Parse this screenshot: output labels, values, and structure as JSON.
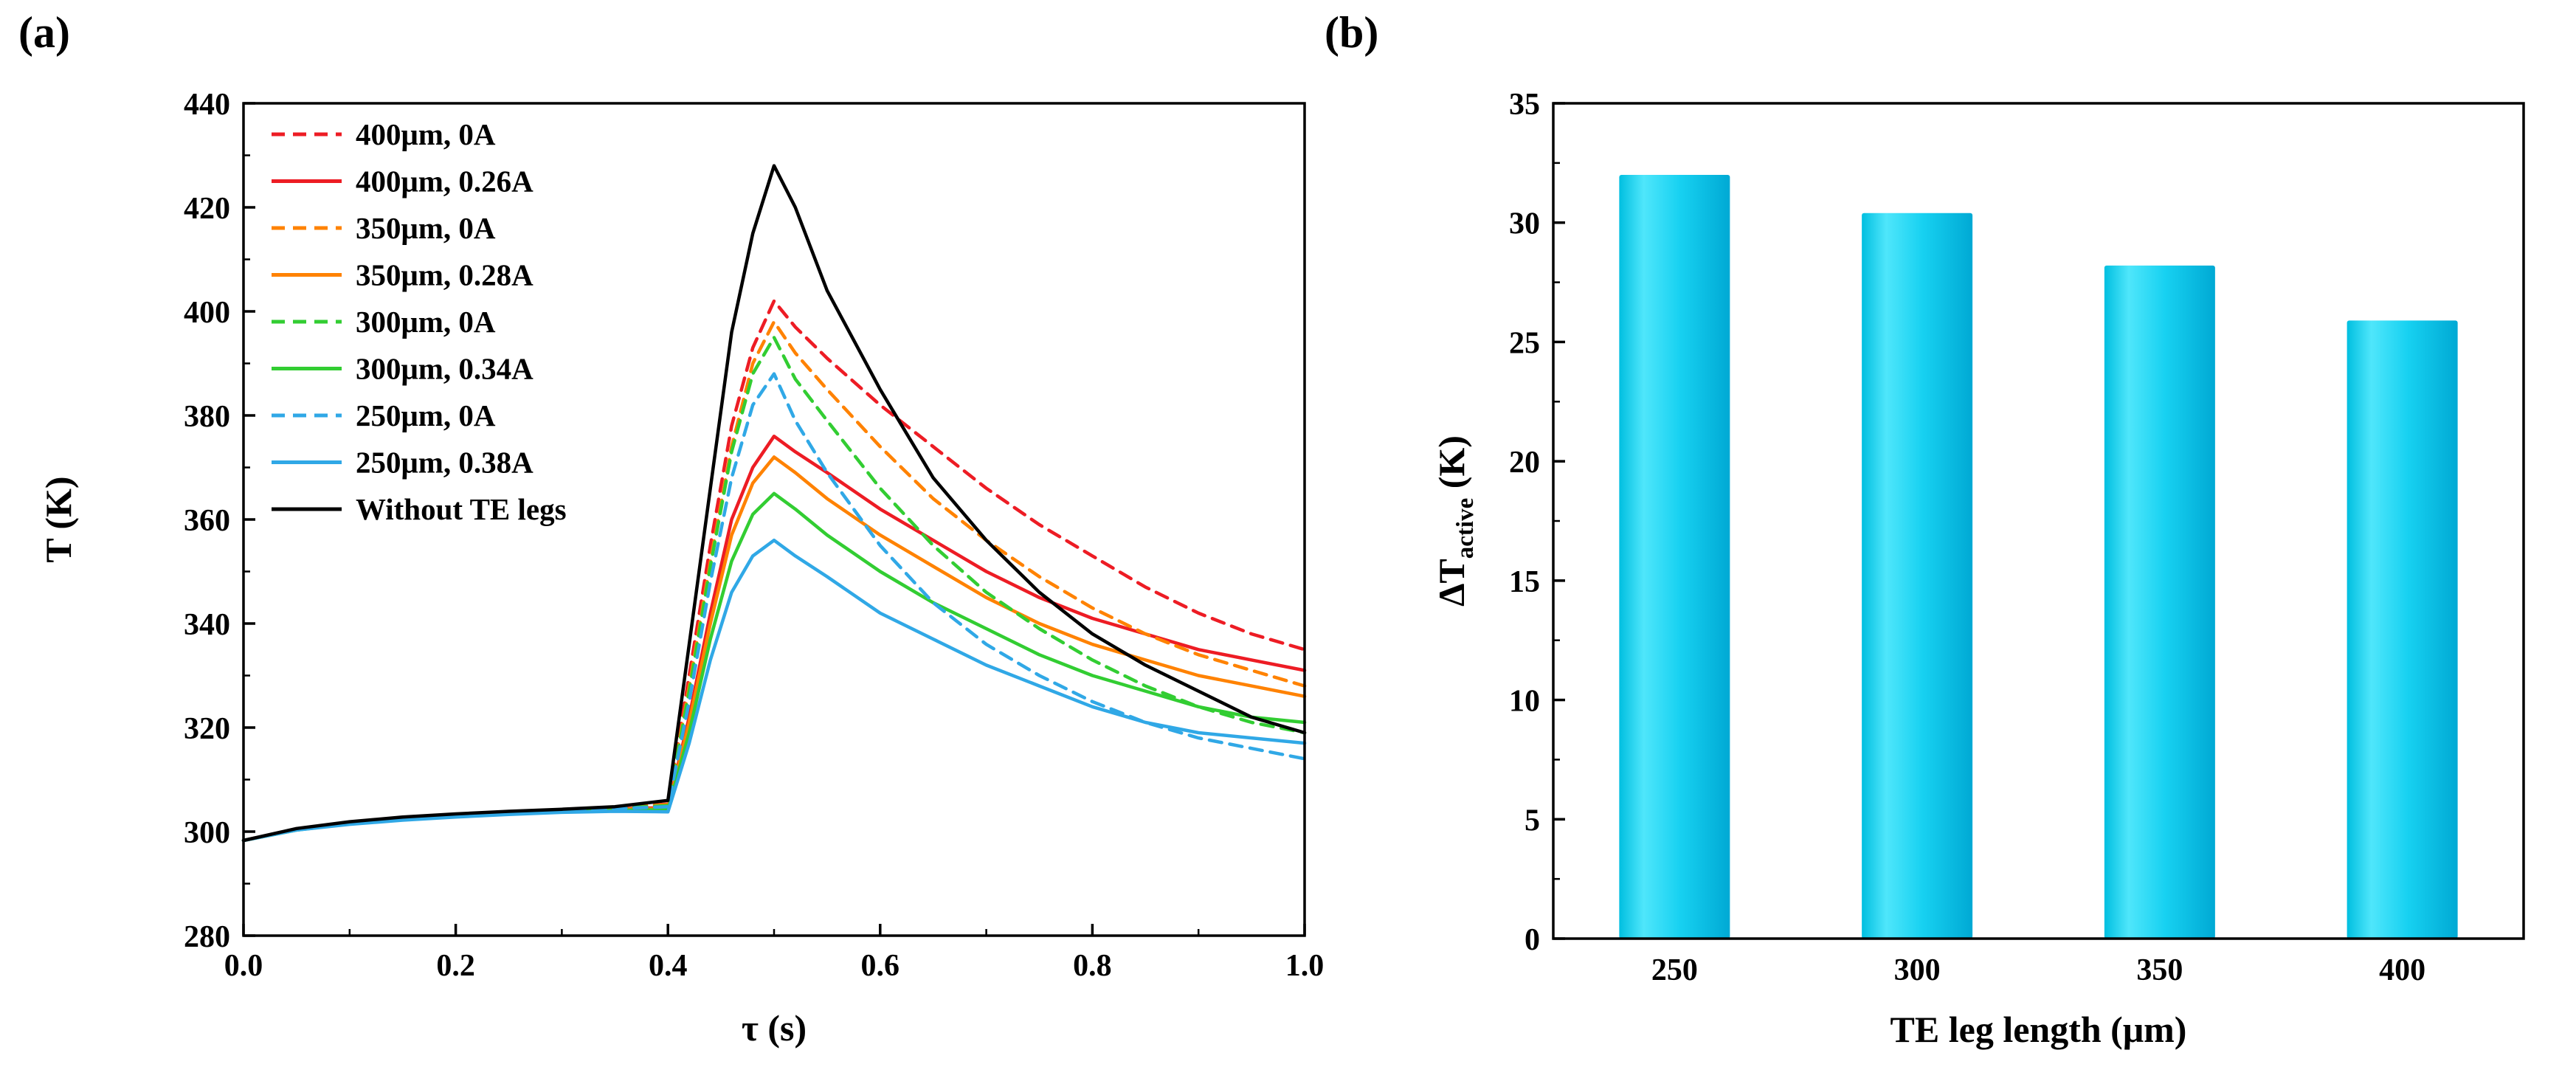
{
  "figure": {
    "panel_a_label": "(a)",
    "panel_b_label": "(b)"
  },
  "chart_data": [
    {
      "id": "panel-a",
      "type": "line",
      "title": "",
      "xlabel": "τ (s)",
      "ylabel": "T (K)",
      "xlim": [
        0,
        1.0
      ],
      "ylim": [
        280,
        440
      ],
      "xticks": [
        0,
        0.2,
        0.4,
        0.6,
        0.8,
        1.0
      ],
      "xtick_labels": [
        "0.0",
        "0.2",
        "0.4",
        "0.6",
        "0.8",
        "1.0"
      ],
      "xminor": [
        0.1,
        0.3,
        0.5,
        0.7,
        0.9
      ],
      "yticks": [
        280,
        300,
        320,
        340,
        360,
        380,
        400,
        420,
        440
      ],
      "yminor": [
        290,
        310,
        330,
        350,
        370,
        390,
        410,
        430
      ],
      "grid": false,
      "legend_position": "top-left",
      "axis_color": "#000000",
      "x": [
        0,
        0.05,
        0.1,
        0.15,
        0.2,
        0.25,
        0.3,
        0.35,
        0.4,
        0.42,
        0.44,
        0.46,
        0.48,
        0.5,
        0.52,
        0.55,
        0.6,
        0.65,
        0.7,
        0.75,
        0.8,
        0.85,
        0.9,
        0.95,
        1.0
      ],
      "series": [
        {
          "name": "400μm, 0A",
          "color": "#ed1c24",
          "dash": true,
          "y": [
            298.3,
            300.5,
            301.8,
            302.7,
            303.3,
            303.8,
            304.2,
            304.6,
            305.3,
            330,
            355,
            378,
            393,
            402,
            397,
            391,
            382,
            374,
            366,
            359,
            353,
            347,
            342,
            338,
            335
          ]
        },
        {
          "name": "400μm, 0.26A",
          "color": "#ed1c24",
          "dash": false,
          "y": [
            298.3,
            300.4,
            301.6,
            302.5,
            303.1,
            303.6,
            304.0,
            304.4,
            304.6,
            322,
            342,
            360,
            370,
            376,
            373,
            369,
            362,
            356,
            350,
            345,
            341,
            338,
            335,
            333,
            331
          ]
        },
        {
          "name": "350μm, 0A",
          "color": "#ff8200",
          "dash": true,
          "y": [
            298.3,
            300.5,
            301.8,
            302.7,
            303.3,
            303.8,
            304.2,
            304.6,
            305.2,
            328,
            352,
            374,
            390,
            398,
            392,
            385,
            374,
            364,
            356,
            349,
            343,
            338,
            334,
            331,
            328
          ]
        },
        {
          "name": "350μm, 0.28A",
          "color": "#ff8200",
          "dash": false,
          "y": [
            298.3,
            300.4,
            301.5,
            302.4,
            303.0,
            303.5,
            303.9,
            304.3,
            304.4,
            321,
            340,
            357,
            367,
            372,
            369,
            364,
            357,
            351,
            345,
            340,
            336,
            333,
            330,
            328,
            326
          ]
        },
        {
          "name": "300μm, 0A",
          "color": "#32cd32",
          "dash": true,
          "y": [
            298.3,
            300.4,
            301.7,
            302.6,
            303.2,
            303.7,
            304.1,
            304.5,
            305.0,
            327,
            351,
            373,
            388,
            395,
            387,
            379,
            366,
            355,
            346,
            339,
            333,
            328,
            324,
            321,
            319
          ]
        },
        {
          "name": "300μm, 0.34A",
          "color": "#32cd32",
          "dash": false,
          "y": [
            298.3,
            300.3,
            301.5,
            302.3,
            302.9,
            303.4,
            303.8,
            304.1,
            304.2,
            319,
            337,
            352,
            361,
            365,
            362,
            357,
            350,
            344,
            339,
            334,
            330,
            327,
            324,
            322,
            321
          ]
        },
        {
          "name": "250μm, 0A",
          "color": "#30a8e6",
          "dash": true,
          "y": [
            298.3,
            300.4,
            301.6,
            302.5,
            303.1,
            303.6,
            304.0,
            304.4,
            304.8,
            325,
            348,
            368,
            382,
            388,
            379,
            369,
            355,
            344,
            336,
            330,
            325,
            321,
            318,
            316,
            314
          ]
        },
        {
          "name": "250μm, 0.38A",
          "color": "#30a8e6",
          "dash": false,
          "y": [
            298.3,
            300.3,
            301.4,
            302.2,
            302.8,
            303.3,
            303.7,
            303.9,
            303.8,
            317,
            333,
            346,
            353,
            356,
            353,
            349,
            342,
            337,
            332,
            328,
            324,
            321,
            319,
            318,
            317
          ]
        },
        {
          "name": "Without TE legs",
          "color": "#000000",
          "dash": false,
          "y": [
            298.3,
            300.6,
            301.9,
            302.8,
            303.4,
            303.9,
            304.3,
            304.8,
            306,
            336,
            366,
            396,
            415,
            428,
            420,
            404,
            385,
            368,
            356,
            346,
            338,
            332,
            327,
            322,
            319
          ]
        }
      ]
    },
    {
      "id": "panel-b",
      "type": "bar",
      "title": "",
      "categories": [
        "250",
        "300",
        "350",
        "400"
      ],
      "values": [
        32.0,
        30.4,
        28.2,
        25.9
      ],
      "xlabel": "TE leg length (μm)",
      "ylabel": "ΔT_active (K)",
      "ylabel_parts": {
        "main": "ΔT",
        "sub": "active",
        "suffix": " (K)"
      },
      "ylim": [
        0,
        35
      ],
      "yticks": [
        0,
        5,
        10,
        15,
        20,
        25,
        30,
        35
      ],
      "yminor": [
        2.5,
        7.5,
        12.5,
        17.5,
        22.5,
        27.5,
        32.5
      ],
      "grid": false,
      "axis_color": "#000000",
      "bar_gradient": [
        {
          "offset": "0",
          "color": "#00bfe0"
        },
        {
          "offset": "0.22",
          "color": "#4fe6fb"
        },
        {
          "offset": "0.55",
          "color": "#17d1f1"
        },
        {
          "offset": "1",
          "color": "#00a9d4"
        }
      ]
    }
  ]
}
